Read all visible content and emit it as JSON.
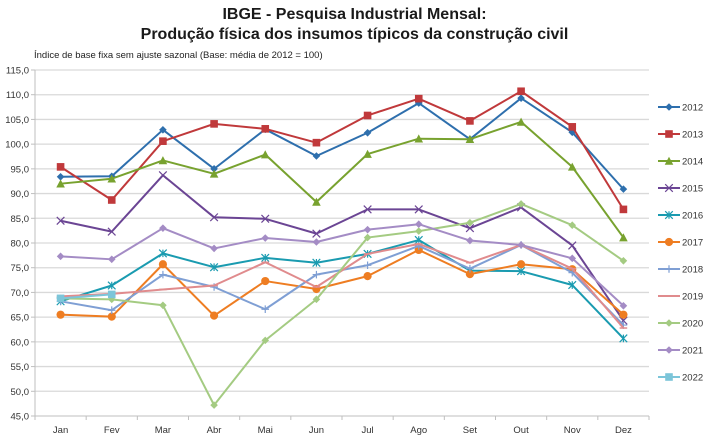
{
  "chart_data": {
    "type": "line",
    "title": "IBGE - Pesquisa Industrial Mensal:",
    "subtitle": "Produção física dos insumos típicos da construção civil",
    "ylabel": "Índice de base fixa sem ajuste sazonal (Base: média de 2012 = 100)",
    "xlabel": "",
    "ylim": [
      45,
      115
    ],
    "ytick_step": 5,
    "ytick_labels": [
      "45,0",
      "50,0",
      "55,0",
      "60,0",
      "65,0",
      "70,0",
      "75,0",
      "80,0",
      "85,0",
      "90,0",
      "95,0",
      "100,0",
      "105,0",
      "110,0",
      "115,0"
    ],
    "grid": true,
    "legend_position": "right",
    "categories": [
      "Jan",
      "Fev",
      "Mar",
      "Abr",
      "Mai",
      "Jun",
      "Jul",
      "Ago",
      "Set",
      "Out",
      "Nov",
      "Dez"
    ],
    "series": [
      {
        "name": "2012",
        "color": "#2e6fad",
        "marker": "diamond",
        "values": [
          93.4,
          93.5,
          102.9,
          95.0,
          103.0,
          97.6,
          102.3,
          108.3,
          101.0,
          109.3,
          102.4,
          90.9
        ]
      },
      {
        "name": "2013",
        "color": "#c0393b",
        "marker": "square",
        "values": [
          95.4,
          88.7,
          100.6,
          104.1,
          103.1,
          100.3,
          105.8,
          109.2,
          104.7,
          110.7,
          103.5,
          86.8
        ]
      },
      {
        "name": "2014",
        "color": "#78a22f",
        "marker": "triangle",
        "values": [
          92.0,
          93.0,
          96.7,
          94.0,
          97.9,
          88.3,
          98.0,
          101.1,
          101.0,
          104.5,
          95.4,
          81.1
        ]
      },
      {
        "name": "2015",
        "color": "#6b4594",
        "marker": "x",
        "values": [
          84.5,
          82.3,
          93.7,
          85.2,
          84.9,
          81.9,
          86.8,
          86.8,
          83.0,
          87.2,
          79.5,
          64.3
        ]
      },
      {
        "name": "2016",
        "color": "#1a9bb0",
        "marker": "star",
        "values": [
          68.2,
          71.4,
          77.9,
          75.1,
          77.0,
          76.0,
          77.8,
          80.6,
          74.4,
          74.3,
          71.5,
          60.7
        ]
      },
      {
        "name": "2017",
        "color": "#ee7d22",
        "marker": "circle",
        "values": [
          65.5,
          65.1,
          75.7,
          65.3,
          72.3,
          70.7,
          73.3,
          78.6,
          73.7,
          75.7,
          74.7,
          65.5
        ]
      },
      {
        "name": "2018",
        "color": "#7f9fd4",
        "marker": "plus",
        "values": [
          68.2,
          66.4,
          73.6,
          71.1,
          66.6,
          73.6,
          75.5,
          79.4,
          74.8,
          79.6,
          74.0,
          63.4
        ]
      },
      {
        "name": "2019",
        "color": "#e08b8d",
        "marker": "dash",
        "values": [
          69.2,
          69.7,
          70.6,
          71.4,
          76.1,
          71.1,
          77.8,
          79.8,
          76.0,
          79.6,
          74.8,
          62.8
        ]
      },
      {
        "name": "2020",
        "color": "#a4cb82",
        "marker": "diamond",
        "values": [
          68.8,
          68.6,
          67.4,
          47.2,
          60.3,
          68.6,
          81.1,
          82.4,
          84.1,
          87.9,
          83.6,
          76.4
        ]
      },
      {
        "name": "2021",
        "color": "#a48cc5",
        "marker": "diamond",
        "values": [
          77.3,
          76.7,
          83.0,
          78.9,
          81.0,
          80.2,
          82.7,
          83.8,
          80.5,
          79.6,
          76.9,
          67.3
        ]
      },
      {
        "name": "2022",
        "color": "#7cc5d9",
        "marker": "square",
        "values": [
          68.8,
          69.6
        ]
      }
    ]
  }
}
